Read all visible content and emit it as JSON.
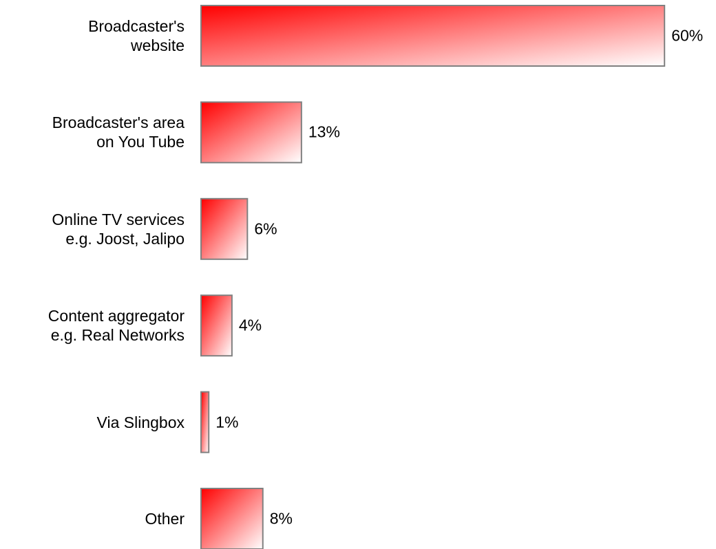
{
  "chart_data": {
    "type": "hbar",
    "categories": [
      "Broadcaster's\nwebsite",
      "Broadcaster's area\non You Tube",
      "Online TV services\ne.g. Joost, Jalipo",
      "Content aggregator\ne.g. Real Networks",
      "Via Slingbox",
      "Other"
    ],
    "values": [
      60,
      13,
      6,
      4,
      1,
      8
    ],
    "value_labels": [
      "60%",
      "13%",
      "6%",
      "4%",
      "1%",
      "8%"
    ],
    "color": "#ff0000"
  }
}
